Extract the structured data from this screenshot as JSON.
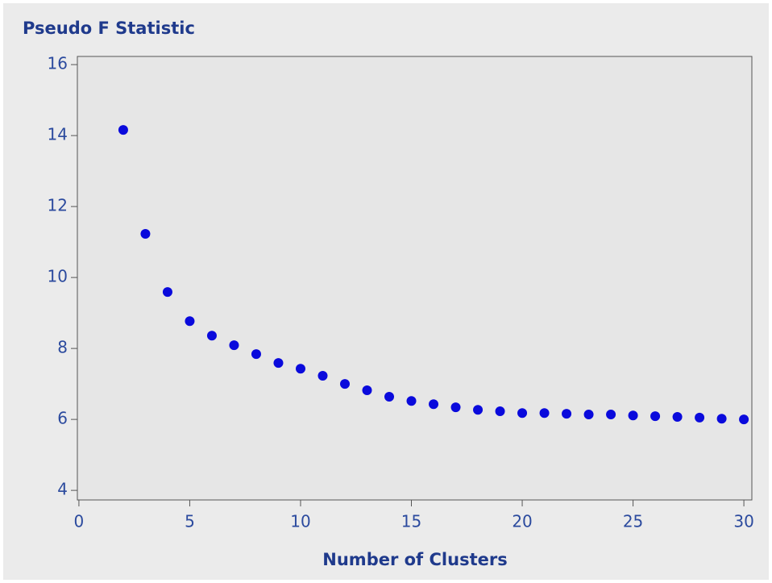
{
  "chart_data": {
    "type": "scatter",
    "title": "Pseudo F Statistic",
    "x_label": "Number of Clusters",
    "x": [
      2,
      3,
      4,
      5,
      6,
      7,
      8,
      9,
      10,
      11,
      12,
      13,
      14,
      15,
      16,
      17,
      18,
      19,
      20,
      21,
      22,
      23,
      24,
      25,
      26,
      27,
      28,
      29,
      30
    ],
    "series": [
      {
        "color": "#0a0adc",
        "values": [
          14.16,
          11.23,
          9.59,
          8.77,
          8.36,
          8.09,
          7.84,
          7.59,
          7.43,
          7.23,
          7.0,
          6.82,
          6.64,
          6.52,
          6.43,
          6.34,
          6.27,
          6.23,
          6.18,
          6.18,
          6.16,
          6.14,
          6.14,
          6.11,
          6.09,
          6.07,
          6.05,
          6.02,
          6.0
        ]
      }
    ],
    "xlim": [
      -0.07,
      30.36
    ],
    "xticks": [
      0,
      5,
      10,
      15,
      20,
      25,
      30
    ],
    "ylim": [
      3.73,
      16.23
    ],
    "yticks": [
      4,
      6,
      8,
      10,
      12,
      14,
      16
    ]
  }
}
